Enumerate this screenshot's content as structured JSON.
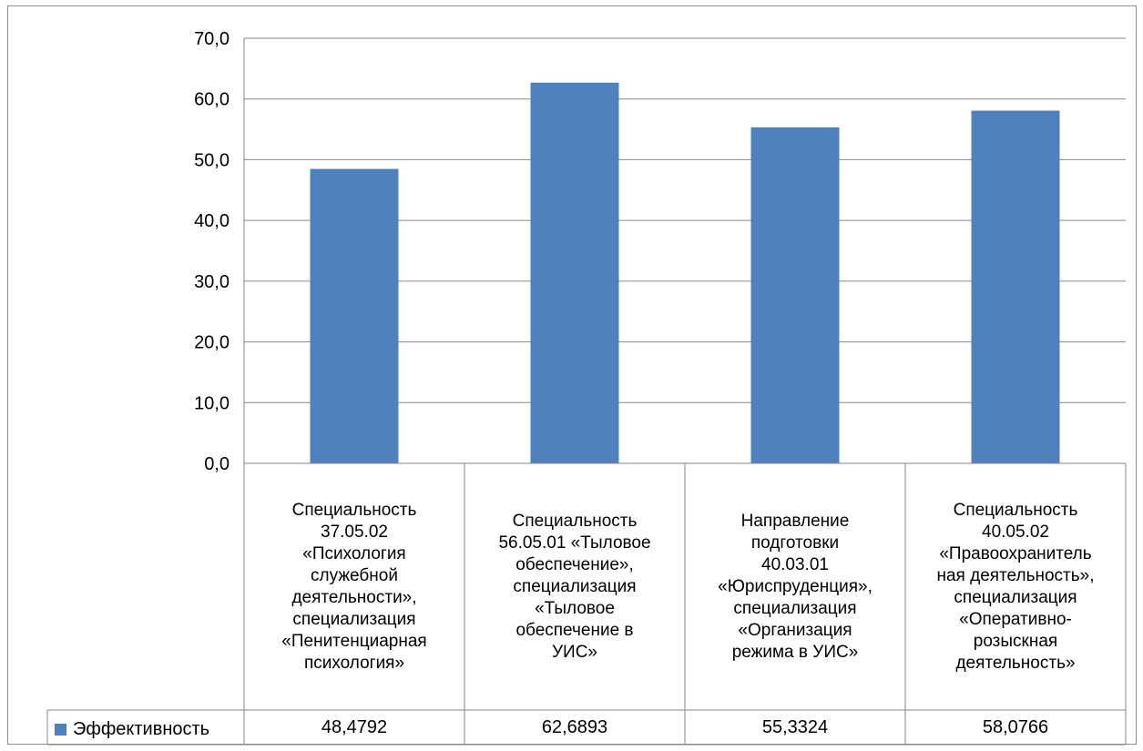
{
  "chart_data": {
    "type": "bar",
    "categories": [
      "Специальность 37.05.02 «Психология служебной деятельности», специализация «Пенитенциарная психология»",
      "Специальность 56.05.01 «Тыловое обеспечение», специализация «Тыловое обеспечение в УИС»",
      "Направление подготовки 40.03.01 «Юриспруденция», специализация «Организация режима в УИС»",
      "Специальность 40.05.02 «Правоохранительная деятельность», специализация «Оперативно-розыскная деятельность»"
    ],
    "category_lines": [
      [
        "Специальность",
        "37.05.02",
        "«Психология",
        "служебной",
        "деятельности»,",
        "специализация",
        "«Пенитенциарная",
        "психология»"
      ],
      [
        "Специальность",
        "56.05.01 «Тыловое",
        "обеспечение»,",
        "специализация",
        "«Тыловое",
        "обеспечение в",
        "УИС»"
      ],
      [
        "Направление",
        "подготовки",
        "40.03.01",
        "«Юриспруденция»,",
        "специализация",
        "«Организация",
        "режима в УИС»"
      ],
      [
        "Специальность",
        "40.05.02",
        "«Правоохранитель",
        "ная деятельность»,",
        "специализация",
        "«Оперативно-",
        "розыскная",
        "деятельность»"
      ]
    ],
    "series": [
      {
        "name": "Эффективность",
        "values": [
          48.4792,
          62.6893,
          55.3324,
          58.0766
        ],
        "value_labels": [
          "48,4792",
          "62,6893",
          "55,3324",
          "58,0766"
        ]
      }
    ],
    "ylim": [
      0,
      70
    ],
    "yticks": [
      0,
      10,
      20,
      30,
      40,
      50,
      60,
      70
    ],
    "ytick_labels": [
      "0,0",
      "10,0",
      "20,0",
      "30,0",
      "40,0",
      "50,0",
      "60,0",
      "70,0"
    ],
    "grid": true,
    "legend": "data-table-left",
    "title": "",
    "xlabel": "",
    "ylabel": "",
    "bar_color": "#4f81bd",
    "grid_color": "#868686"
  }
}
